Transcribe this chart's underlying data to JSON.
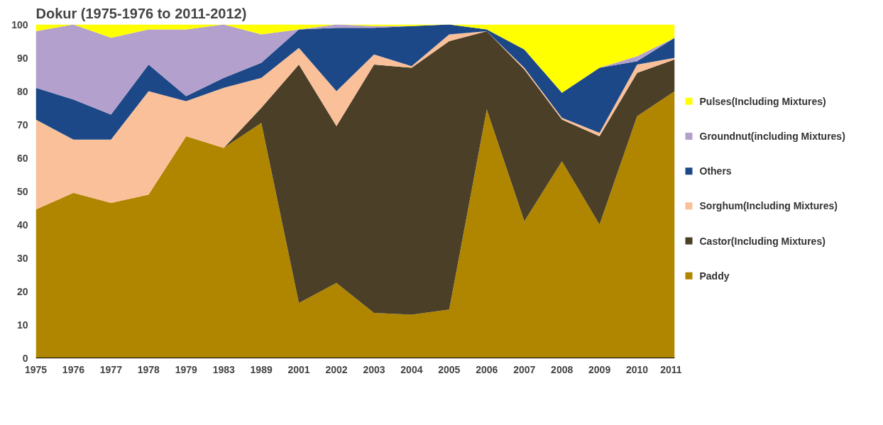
{
  "chart_data": {
    "type": "area",
    "title": "Dokur (1975-1976 to 2011-2012)",
    "stacked": true,
    "categories": [
      "1975",
      "1976",
      "1977",
      "1978",
      "1979",
      "1983",
      "1989",
      "2001",
      "2002",
      "2003",
      "2004",
      "2005",
      "2006",
      "2007",
      "2008",
      "2009",
      "2010",
      "2011"
    ],
    "ylim": [
      0,
      100
    ],
    "yticks": [
      0,
      10,
      20,
      30,
      40,
      50,
      60,
      70,
      80,
      90,
      100
    ],
    "grid": false,
    "legend": "right",
    "series": [
      {
        "name": "Paddy",
        "color": "#b08600",
        "values": [
          44.5,
          49.5,
          46.5,
          49,
          66.5,
          63,
          70.5,
          16.5,
          22.5,
          13.5,
          13,
          14.5,
          74.5,
          41,
          59,
          40,
          72.5,
          80
        ]
      },
      {
        "name": "Castor(Including Mixtures)",
        "color": "#4b3f27",
        "values": [
          0,
          0,
          0,
          0,
          0,
          0,
          4.5,
          71.5,
          47,
          74.5,
          74,
          80.5,
          23.5,
          45.5,
          12.5,
          26.5,
          13,
          9.5
        ]
      },
      {
        "name": "Sorghum(Including Mixtures)",
        "color": "#f9c09a",
        "values": [
          27,
          16,
          19,
          31,
          10.5,
          18,
          9,
          5,
          10.5,
          3,
          0.5,
          2,
          0,
          0.5,
          0.5,
          1,
          2.5,
          0.5
        ]
      },
      {
        "name": "Others",
        "color": "#1d4888",
        "values": [
          9.5,
          12,
          7.5,
          8,
          1.5,
          3,
          4.5,
          5.5,
          19,
          8,
          12,
          3,
          0.5,
          5.5,
          7.5,
          19.5,
          1,
          6
        ]
      },
      {
        "name": "Groundnut(including Mixtures)",
        "color": "#b3a0cc",
        "values": [
          17,
          22.5,
          23,
          10.5,
          20,
          16,
          8.5,
          0,
          1,
          0.5,
          0,
          0,
          0,
          0,
          0,
          0,
          1.5,
          0
        ]
      },
      {
        "name": "Pulses(Including Mixtures)",
        "color": "#ffff00",
        "values": [
          2,
          0,
          4,
          1.5,
          1.5,
          0,
          3,
          1.5,
          0,
          0.5,
          0.5,
          0,
          1.5,
          7.5,
          20.5,
          13,
          9.5,
          4
        ]
      }
    ]
  }
}
